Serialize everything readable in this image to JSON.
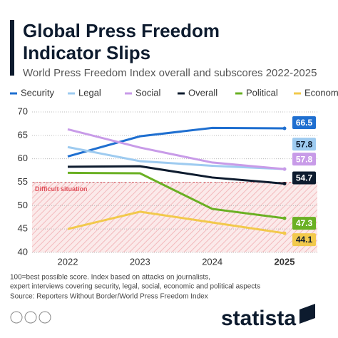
{
  "chart_data": {
    "type": "line",
    "title": [
      "Global Press Freedom",
      "Indicator Slips"
    ],
    "subtitle": "World Press Freedom Index overall and subscores 2022-2025",
    "categories": [
      "2022",
      "2023",
      "2024",
      "2025"
    ],
    "series": [
      {
        "name": "Security",
        "color": "#1f6fd0",
        "values": [
          60.5,
          64.8,
          66.6,
          66.5
        ]
      },
      {
        "name": "Legal",
        "color": "#9ecbf0",
        "values": [
          62.5,
          59.5,
          58.5,
          57.8
        ]
      },
      {
        "name": "Social",
        "color": "#c89be8",
        "values": [
          66.3,
          62.4,
          59.2,
          57.8
        ]
      },
      {
        "name": "Overall",
        "color": "#0d1b2e",
        "values": [
          58.3,
          58.4,
          56.0,
          54.7
        ]
      },
      {
        "name": "Political",
        "color": "#6ab023",
        "values": [
          57.0,
          56.9,
          49.3,
          47.3
        ]
      },
      {
        "name": "Economic",
        "color": "#f2c94c",
        "values": [
          45.0,
          48.7,
          46.4,
          44.1
        ]
      }
    ],
    "ylim": [
      40,
      70
    ],
    "yticks": [
      40,
      45,
      50,
      55,
      60,
      65,
      70
    ],
    "grid": true,
    "band": {
      "label": "Difficult situation",
      "from": 40,
      "to": 55,
      "color": "#e0505a"
    },
    "note": [
      "100=best possible score. Index based on attacks on journalists,",
      "expert interviews covering security, legal, social, economic and political aspects"
    ],
    "source": "Source: Reporters Without Border/World Press Freedom Index",
    "brand": "statista"
  }
}
